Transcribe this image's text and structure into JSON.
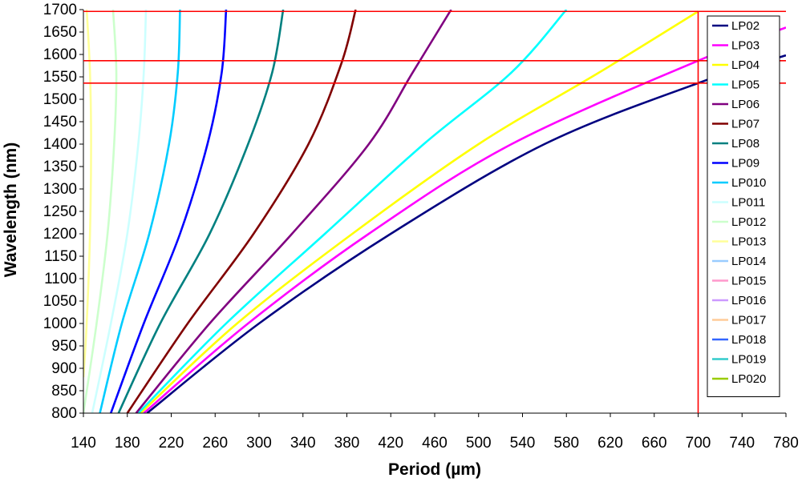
{
  "chart_data": {
    "type": "line",
    "xlabel": "Period (µm)",
    "ylabel": "Wavelength (nm)",
    "xlim": [
      140,
      780
    ],
    "ylim": [
      800,
      1700
    ],
    "x_ticks": [
      "140",
      "180",
      "220",
      "260",
      "300",
      "340",
      "380",
      "420",
      "460",
      "500",
      "540",
      "580",
      "620",
      "660",
      "700",
      "740",
      "780"
    ],
    "y_ticks": [
      "800",
      "850",
      "900",
      "950",
      "1000",
      "1050",
      "1100",
      "1150",
      "1200",
      "1250",
      "1300",
      "1350",
      "1400",
      "1450",
      "1500",
      "1550",
      "1600",
      "1650",
      "1700"
    ],
    "grid": false,
    "legend_position": "right",
    "reference_lines": {
      "horizontal_wavelengths": [
        1536,
        1586,
        1696
      ],
      "vertical_period": 700,
      "color": "#ff0000"
    },
    "series": [
      {
        "name": "LP02",
        "color": "#000080",
        "points": [
          [
            198,
            800
          ],
          [
            300,
            1000
          ],
          [
            420,
            1200
          ],
          [
            560,
            1400
          ],
          [
            700,
            1536
          ],
          [
            780,
            1598
          ]
        ]
      },
      {
        "name": "LP03",
        "color": "#ff00ff",
        "points": [
          [
            195,
            800
          ],
          [
            290,
            1000
          ],
          [
            400,
            1200
          ],
          [
            530,
            1400
          ],
          [
            700,
            1586
          ],
          [
            780,
            1660
          ]
        ]
      },
      {
        "name": "LP04",
        "color": "#ffff00",
        "points": [
          [
            192,
            800
          ],
          [
            280,
            1000
          ],
          [
            385,
            1200
          ],
          [
            500,
            1400
          ],
          [
            610,
            1560
          ],
          [
            700,
            1696
          ]
        ]
      },
      {
        "name": "LP05",
        "color": "#00ffff",
        "points": [
          [
            190,
            800
          ],
          [
            270,
            1000
          ],
          [
            360,
            1200
          ],
          [
            450,
            1400
          ],
          [
            530,
            1560
          ],
          [
            580,
            1700
          ]
        ]
      },
      {
        "name": "LP06",
        "color": "#800080",
        "points": [
          [
            188,
            800
          ],
          [
            255,
            1000
          ],
          [
            330,
            1200
          ],
          [
            400,
            1400
          ],
          [
            440,
            1560
          ],
          [
            475,
            1700
          ]
        ]
      },
      {
        "name": "LP07",
        "color": "#800000",
        "points": [
          [
            180,
            800
          ],
          [
            235,
            1000
          ],
          [
            295,
            1200
          ],
          [
            345,
            1400
          ],
          [
            375,
            1580
          ],
          [
            388,
            1700
          ]
        ]
      },
      {
        "name": "LP08",
        "color": "#008080",
        "points": [
          [
            172,
            800
          ],
          [
            210,
            1000
          ],
          [
            255,
            1200
          ],
          [
            290,
            1400
          ],
          [
            312,
            1560
          ],
          [
            322,
            1700
          ]
        ]
      },
      {
        "name": "LP09",
        "color": "#0000ff",
        "points": [
          [
            165,
            800
          ],
          [
            195,
            1000
          ],
          [
            228,
            1200
          ],
          [
            253,
            1400
          ],
          [
            266,
            1560
          ],
          [
            270,
            1700
          ]
        ]
      },
      {
        "name": "LP010",
        "color": "#00ccff",
        "points": [
          [
            155,
            800
          ],
          [
            175,
            1000
          ],
          [
            200,
            1200
          ],
          [
            218,
            1400
          ],
          [
            226,
            1560
          ],
          [
            228,
            1700
          ]
        ]
      },
      {
        "name": "LP011",
        "color": "#ccffff",
        "points": [
          [
            148,
            800
          ],
          [
            165,
            1000
          ],
          [
            180,
            1200
          ],
          [
            190,
            1400
          ],
          [
            195,
            1560
          ],
          [
            197,
            1700
          ]
        ]
      },
      {
        "name": "LP012",
        "color": "#ccffcc",
        "points": [
          [
            140,
            800
          ],
          [
            152,
            1000
          ],
          [
            162,
            1200
          ],
          [
            168,
            1400
          ],
          [
            170,
            1560
          ],
          [
            167,
            1700
          ]
        ]
      },
      {
        "name": "LP013",
        "color": "#ffff99",
        "points": [
          [
            140,
            880
          ],
          [
            143,
            1000
          ],
          [
            146,
            1200
          ],
          [
            147,
            1400
          ],
          [
            146,
            1560
          ],
          [
            143,
            1700
          ]
        ]
      },
      {
        "name": "LP014",
        "color": "#99ccff"
      },
      {
        "name": "LP015",
        "color": "#ff99cc"
      },
      {
        "name": "LP016",
        "color": "#cc99ff"
      },
      {
        "name": "LP017",
        "color": "#ffcc99"
      },
      {
        "name": "LP018",
        "color": "#3366ff"
      },
      {
        "name": "LP019",
        "color": "#33cccc"
      },
      {
        "name": "LP020",
        "color": "#99cc00"
      }
    ]
  }
}
